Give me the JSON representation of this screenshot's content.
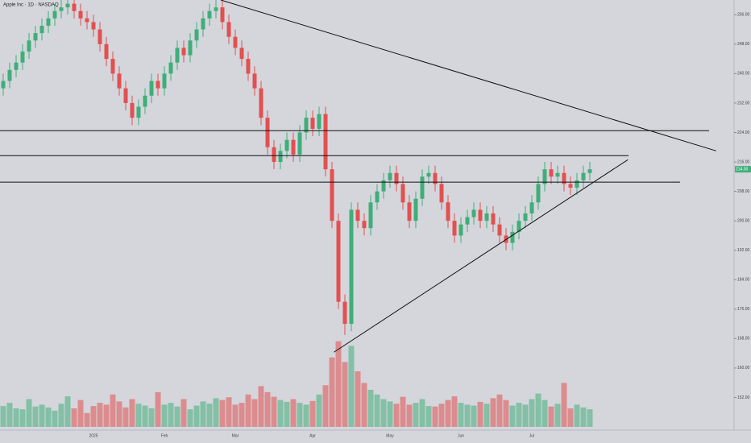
{
  "chart_data": {
    "type": "candlestick",
    "title": "Apple Inc · 1D · NASDAQ",
    "up_color": "#3fae79",
    "down_color": "#e2504f",
    "level_color": "#111111",
    "categories": [
      null,
      null,
      null,
      null,
      null,
      null,
      null,
      null,
      null,
      null,
      null,
      null,
      null,
      null,
      "2025",
      null,
      null,
      null,
      null,
      null,
      null,
      null,
      null,
      null,
      null,
      "Feb",
      null,
      null,
      null,
      null,
      null,
      null,
      null,
      null,
      null,
      null,
      "Mar",
      null,
      null,
      null,
      null,
      null,
      null,
      null,
      null,
      null,
      null,
      null,
      "Apr",
      null,
      null,
      null,
      null,
      null,
      null,
      null,
      null,
      null,
      null,
      null,
      "May",
      null,
      null,
      null,
      null,
      null,
      null,
      null,
      null,
      null,
      null,
      "Jun",
      null,
      null,
      null,
      null,
      null,
      null,
      null,
      null,
      null,
      null,
      "Jul",
      null,
      null,
      null,
      null,
      null,
      null,
      null,
      null,
      null
    ],
    "open": [
      236,
      238,
      241,
      243,
      246,
      249,
      251,
      253,
      255,
      257,
      258,
      259,
      257,
      255,
      254,
      252,
      248,
      244,
      240,
      236,
      232,
      228,
      231,
      234,
      238,
      236,
      240,
      243,
      247,
      245,
      249,
      252,
      255,
      257,
      258,
      254,
      250,
      247,
      244,
      240,
      236,
      228,
      220,
      216,
      219,
      222,
      218,
      224,
      228,
      225,
      229,
      214,
      200,
      178,
      172,
      203,
      200,
      198,
      205,
      208,
      211,
      213,
      210,
      205,
      200,
      206,
      212,
      213,
      210,
      205,
      200,
      196,
      199,
      201,
      203,
      200,
      202,
      199,
      196,
      194,
      197,
      200,
      202,
      205,
      210,
      214,
      212,
      213,
      210,
      209,
      211,
      213
    ],
    "high": [
      240,
      243,
      245,
      248,
      251,
      253,
      255,
      257,
      259,
      260,
      261,
      261,
      259,
      257,
      256,
      254,
      250,
      246,
      242,
      238,
      234,
      233,
      236,
      240,
      240,
      242,
      245,
      249,
      249,
      251,
      254,
      257,
      259,
      260,
      260,
      256,
      252,
      249,
      246,
      242,
      238,
      230,
      222,
      221,
      224,
      224,
      226,
      230,
      230,
      231,
      231,
      216,
      202,
      180,
      205,
      205,
      202,
      207,
      210,
      213,
      215,
      215,
      212,
      207,
      208,
      214,
      215,
      215,
      212,
      207,
      202,
      201,
      203,
      205,
      205,
      204,
      204,
      201,
      198,
      199,
      202,
      204,
      207,
      212,
      216,
      216,
      215,
      215,
      212,
      213,
      215,
      216
    ],
    "low": [
      234,
      236,
      239,
      241,
      244,
      247,
      249,
      251,
      253,
      255,
      256,
      255,
      253,
      252,
      250,
      246,
      242,
      238,
      234,
      230,
      226,
      226,
      229,
      232,
      234,
      234,
      238,
      241,
      243,
      243,
      247,
      250,
      253,
      255,
      252,
      248,
      245,
      242,
      238,
      234,
      226,
      218,
      214,
      214,
      217,
      216,
      216,
      222,
      223,
      223,
      212,
      198,
      176,
      169,
      170,
      198,
      196,
      196,
      203,
      206,
      209,
      208,
      203,
      198,
      198,
      204,
      210,
      208,
      203,
      198,
      194,
      194,
      197,
      199,
      198,
      198,
      197,
      194,
      192,
      192,
      195,
      198,
      200,
      203,
      208,
      210,
      210,
      208,
      207,
      207,
      209,
      211
    ],
    "close": [
      238,
      241,
      243,
      246,
      249,
      251,
      253,
      255,
      257,
      258,
      259,
      257,
      255,
      254,
      252,
      248,
      244,
      240,
      236,
      232,
      228,
      231,
      234,
      238,
      236,
      240,
      243,
      247,
      245,
      249,
      252,
      255,
      257,
      258,
      254,
      250,
      247,
      244,
      240,
      236,
      228,
      220,
      216,
      219,
      222,
      218,
      224,
      228,
      225,
      229,
      214,
      200,
      178,
      172,
      203,
      200,
      198,
      205,
      208,
      211,
      213,
      210,
      205,
      200,
      206,
      212,
      213,
      210,
      205,
      200,
      196,
      199,
      201,
      203,
      200,
      202,
      199,
      196,
      194,
      197,
      200,
      202,
      205,
      210,
      214,
      212,
      213,
      210,
      209,
      211,
      213,
      214
    ],
    "volume": [
      45,
      52,
      40,
      38,
      60,
      44,
      48,
      42,
      35,
      50,
      66,
      40,
      58,
      30,
      45,
      52,
      48,
      70,
      55,
      42,
      60,
      50,
      46,
      40,
      75,
      48,
      52,
      44,
      60,
      38,
      46,
      55,
      50,
      62,
      58,
      64,
      48,
      52,
      70,
      60,
      88,
      75,
      65,
      58,
      54,
      60,
      52,
      48,
      56,
      70,
      90,
      150,
      185,
      140,
      175,
      120,
      95,
      80,
      70,
      60,
      55,
      50,
      65,
      48,
      52,
      60,
      45,
      44,
      50,
      58,
      66,
      52,
      48,
      46,
      54,
      50,
      62,
      70,
      58,
      46,
      52,
      48,
      60,
      72,
      58,
      44,
      50,
      95,
      40,
      48,
      42,
      38
    ],
    "vlim": [
      0,
      200
    ],
    "ylim": [
      144,
      260
    ],
    "yticks": [
      {
        "value": 152,
        "label": "152.00"
      },
      {
        "value": 160,
        "label": "160.00"
      },
      {
        "value": 168,
        "label": "168.00"
      },
      {
        "value": 176,
        "label": "176.00"
      },
      {
        "value": 184,
        "label": "184.00"
      },
      {
        "value": 192,
        "label": "192.00"
      },
      {
        "value": 200,
        "label": "200.00"
      },
      {
        "value": 208,
        "label": "208.00"
      },
      {
        "value": 216,
        "label": "216.00"
      },
      {
        "value": 224,
        "label": "224.00"
      },
      {
        "value": 232,
        "label": "232.00"
      },
      {
        "value": 240,
        "label": "240.00"
      },
      {
        "value": 248,
        "label": "248.00"
      },
      {
        "value": 256,
        "label": "256.00"
      }
    ],
    "levels": [
      {
        "value": 224.5,
        "x_end": 109.5
      },
      {
        "value": 217.7,
        "x_end": 97
      },
      {
        "value": 210.5,
        "x_end": 105
      }
    ],
    "trendlines": [
      {
        "x": [
          33.75,
          110.6
        ],
        "y": [
          260,
          219
        ]
      },
      {
        "x": [
          51.3,
          96.9
        ],
        "y": [
          164.3,
          216.6
        ]
      }
    ],
    "price_label": {
      "value": 214,
      "label": "214.00"
    }
  }
}
